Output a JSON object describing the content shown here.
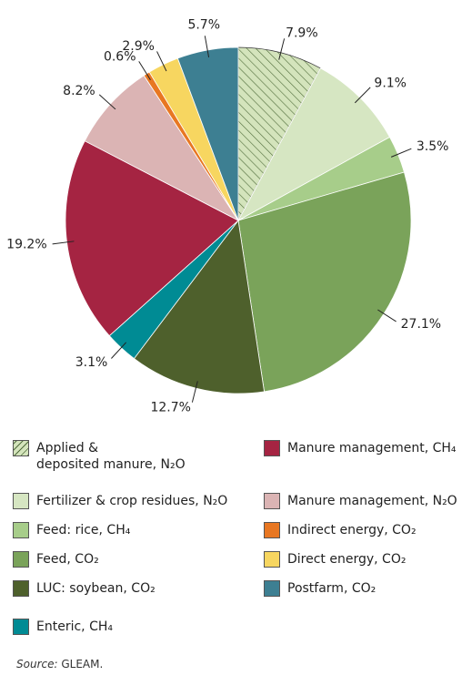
{
  "chart_data": {
    "type": "pie",
    "series": [
      {
        "name": "Applied &\ndeposited manure, N₂O",
        "color": "#d4e4bc",
        "hatch": true
      },
      {
        "name": "Fertilizer & crop residues, N₂O",
        "color": "#d6e6c2",
        "hatch": false
      },
      {
        "name": "Feed: rice, CH₄",
        "color": "#a7cd8a",
        "hatch": false
      },
      {
        "name": "Feed, CO₂",
        "color": "#7aa35a",
        "hatch": false
      },
      {
        "name": "LUC: soybean, CO₂",
        "color": "#4e602c",
        "hatch": false
      },
      {
        "name": "Enteric, CH₄",
        "color": "#008b94",
        "hatch": false
      },
      {
        "name": "Manure management, CH₄",
        "color": "#a52442",
        "hatch": false
      },
      {
        "name": "Manure management, N₂O",
        "color": "#dbb4b4",
        "hatch": false
      },
      {
        "name": "Indirect energy, CO₂",
        "color": "#e87722",
        "hatch": false
      },
      {
        "name": "Direct energy, CO₂",
        "color": "#f7d660",
        "hatch": false
      },
      {
        "name": "Postfarm, CO₂",
        "color": "#3d7f92",
        "hatch": false
      }
    ],
    "values": [
      7.9,
      9.1,
      3.5,
      27.1,
      12.7,
      3.1,
      19.2,
      8.2,
      0.6,
      2.9,
      5.7
    ],
    "value_labels": [
      "7.9%",
      "9.1%",
      "3.5%",
      "27.1%",
      "12.7%",
      "3.1%",
      "19.2%",
      "8.2%",
      "0.6%",
      "2.9%",
      "5.7%"
    ],
    "source_label": "Source:",
    "source": "GLEAM."
  }
}
